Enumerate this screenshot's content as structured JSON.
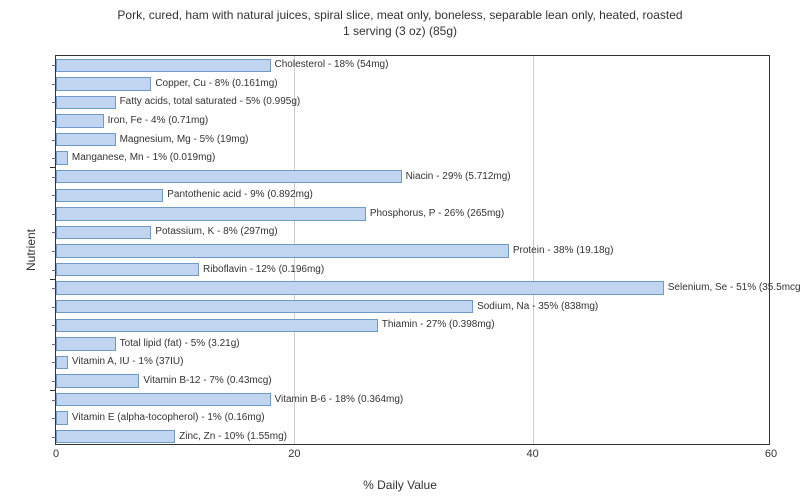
{
  "chart": {
    "type": "bar",
    "title_line1": "Pork, cured, ham with natural juices, spiral slice, meat only, boneless, separable lean only, heated, roasted",
    "title_line2": "1 serving (3 oz) (85g)",
    "xlabel": "% Daily Value",
    "ylabel": "Nutrient",
    "xlim": [
      0,
      60
    ],
    "xtick_step": 20,
    "bar_color": "#c0d6f0",
    "bar_border_color": "#7099c8",
    "grid_color": "#cccccc",
    "background_color": "#ffffff",
    "title_fontsize": 12,
    "label_fontsize": 12,
    "bar_label_fontsize": 10,
    "nutrients": [
      {
        "name": "Cholesterol",
        "pct": 18,
        "amount": "54mg"
      },
      {
        "name": "Copper, Cu",
        "pct": 8,
        "amount": "0.161mg"
      },
      {
        "name": "Fatty acids, total saturated",
        "pct": 5,
        "amount": "0.995g"
      },
      {
        "name": "Iron, Fe",
        "pct": 4,
        "amount": "0.71mg"
      },
      {
        "name": "Magnesium, Mg",
        "pct": 5,
        "amount": "19mg"
      },
      {
        "name": "Manganese, Mn",
        "pct": 1,
        "amount": "0.019mg"
      },
      {
        "name": "Niacin",
        "pct": 29,
        "amount": "5.712mg"
      },
      {
        "name": "Pantothenic acid",
        "pct": 9,
        "amount": "0.892mg"
      },
      {
        "name": "Phosphorus, P",
        "pct": 26,
        "amount": "265mg"
      },
      {
        "name": "Potassium, K",
        "pct": 8,
        "amount": "297mg"
      },
      {
        "name": "Protein",
        "pct": 38,
        "amount": "19.18g"
      },
      {
        "name": "Riboflavin",
        "pct": 12,
        "amount": "0.196mg"
      },
      {
        "name": "Selenium, Se",
        "pct": 51,
        "amount": "35.5mcg"
      },
      {
        "name": "Sodium, Na",
        "pct": 35,
        "amount": "838mg"
      },
      {
        "name": "Thiamin",
        "pct": 27,
        "amount": "0.398mg"
      },
      {
        "name": "Total lipid (fat)",
        "pct": 5,
        "amount": "3.21g"
      },
      {
        "name": "Vitamin A, IU",
        "pct": 1,
        "amount": "37IU"
      },
      {
        "name": "Vitamin B-12",
        "pct": 7,
        "amount": "0.43mcg"
      },
      {
        "name": "Vitamin B-6",
        "pct": 18,
        "amount": "0.364mg"
      },
      {
        "name": "Vitamin E (alpha-tocopherol)",
        "pct": 1,
        "amount": "0.16mg"
      },
      {
        "name": "Zinc, Zn",
        "pct": 10,
        "amount": "1.55mg"
      }
    ],
    "major_groups": 4,
    "xticks": [
      0,
      20,
      40,
      60
    ]
  }
}
